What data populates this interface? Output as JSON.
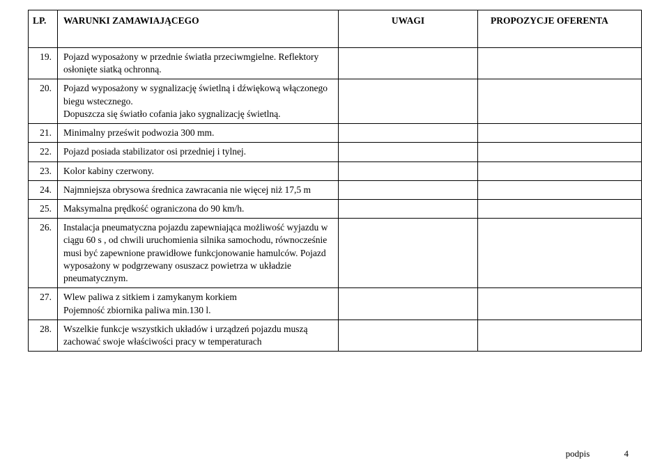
{
  "header": {
    "lp": "LP.",
    "warunki": "WARUNKI  ZAMAWIAJĄCEGO",
    "uwagi": "UWAGI",
    "propozycje": "PROPOZYCJE OFERENTA"
  },
  "rows": [
    {
      "lp": "19.",
      "text": "Pojazd  wyposażony w przednie światła przeciwmgielne. Reflektory osłonięte siatką ochronną."
    },
    {
      "lp": "20.",
      "text": "Pojazd wyposażony w sygnalizację świetlną i dźwiękową włączonego biegu wstecznego.\nDopuszcza się  światło cofania jako sygnalizację świetlną."
    },
    {
      "lp": "21.",
      "text": "Minimalny prześwit podwozia 300 mm."
    },
    {
      "lp": "22.",
      "text": "Pojazd posiada stabilizator osi przedniej i tylnej."
    },
    {
      "lp": "23.",
      "text": "Kolor kabiny czerwony."
    },
    {
      "lp": "24.",
      "text": "Najmniejsza  obrysowa średnica zawracania nie więcej niż 17,5 m"
    },
    {
      "lp": "25.",
      "text": "Maksymalna prędkość ograniczona do 90 km/h."
    },
    {
      "lp": "26.",
      "text": "Instalacja pneumatyczna pojazdu zapewniająca możliwość wyjazdu w ciągu 60 s , od chwili uruchomienia silnika   samochodu, równocześnie musi być zapewnione prawidłowe funkcjonowanie hamulców. Pojazd wyposażony w podgrzewany osuszacz powietrza w układzie pneumatycznym."
    },
    {
      "lp": "27.",
      "text": "Wlew paliwa z sitkiem i zamykanym korkiem\n Pojemność zbiornika paliwa  min.130 l."
    },
    {
      "lp": "28.",
      "text": "Wszelkie funkcje wszystkich układów i urządzeń pojazdu muszą zachować swoje właściwości pracy w temperaturach"
    }
  ],
  "footer": {
    "label": "podpis",
    "page": "4"
  }
}
